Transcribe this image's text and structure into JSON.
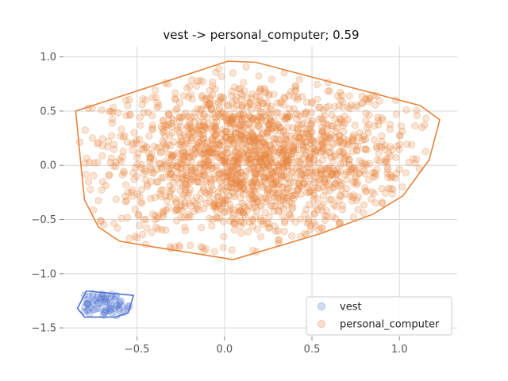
{
  "chart_data": {
    "type": "scatter",
    "title": "vest -> personal_computer; 0.59",
    "xlabel": "",
    "ylabel": "",
    "xlim": [
      -0.92,
      1.33
    ],
    "ylim": [
      -1.58,
      1.1
    ],
    "xticks": [
      -0.5,
      0.0,
      0.5,
      1.0
    ],
    "xtick_labels": [
      "−0.5",
      "0.0",
      "0.5",
      "1.0"
    ],
    "yticks": [
      -1.5,
      -1.0,
      -0.5,
      0.0,
      0.5,
      1.0
    ],
    "ytick_labels": [
      "−1.5",
      "−1.0",
      "−0.5",
      "0.0",
      "0.5",
      "1.0"
    ],
    "grid": true,
    "legend_position": "lower-right",
    "series": [
      {
        "name": "vest",
        "color": "#4c72d0",
        "hull": [
          [
            -0.84,
            -1.32
          ],
          [
            -0.79,
            -1.16
          ],
          [
            -0.52,
            -1.2
          ],
          [
            -0.55,
            -1.36
          ],
          [
            -0.62,
            -1.4
          ],
          [
            -0.8,
            -1.4
          ]
        ],
        "cluster": {
          "center": [
            -0.68,
            -1.28
          ],
          "spread": [
            0.1,
            0.07
          ],
          "count": 70
        }
      },
      {
        "name": "personal_computer",
        "color": "#e8823a",
        "hull": [
          [
            -0.85,
            0.5
          ],
          [
            0.02,
            0.96
          ],
          [
            0.18,
            0.95
          ],
          [
            1.12,
            0.55
          ],
          [
            1.23,
            0.42
          ],
          [
            1.17,
            0.05
          ],
          [
            1.02,
            -0.28
          ],
          [
            0.85,
            -0.45
          ],
          [
            0.55,
            -0.63
          ],
          [
            0.05,
            -0.87
          ],
          [
            -0.42,
            -0.75
          ],
          [
            -0.6,
            -0.7
          ],
          [
            -0.72,
            -0.57
          ],
          [
            -0.8,
            -0.32
          ],
          [
            -0.82,
            0.0
          ]
        ],
        "cluster": {
          "center": [
            0.15,
            0.05
          ],
          "spread": [
            0.45,
            0.38
          ],
          "count": 1800
        }
      }
    ]
  }
}
